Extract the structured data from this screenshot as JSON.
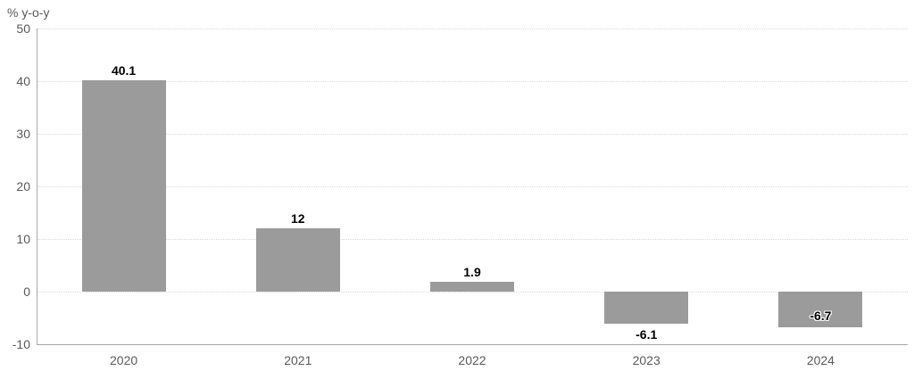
{
  "chart_data": {
    "type": "bar",
    "title": "",
    "ylabel": "% y-o-y",
    "xlabel": "",
    "categories": [
      "2020",
      "2021",
      "2022",
      "2023",
      "2024"
    ],
    "values": [
      40.1,
      12,
      1.9,
      -6.1,
      -6.7
    ],
    "bar_labels": [
      "40.1",
      "12",
      "1.9",
      "-6.1",
      "-6.7"
    ],
    "bar_label_positions": [
      "above",
      "above",
      "above",
      "below",
      "inside"
    ],
    "ylim": [
      -10,
      50
    ],
    "yticks": [
      50,
      40,
      30,
      20,
      10,
      0,
      -10
    ],
    "grid": "horizontal-dotted",
    "legend": "none",
    "colors": {
      "bar": "#9b9b9b",
      "axis_line": "#a6a6a6",
      "gridline": "#d9d9d9",
      "tick_label": "#595959",
      "bar_label": "#000000",
      "background": "#ffffff"
    }
  }
}
